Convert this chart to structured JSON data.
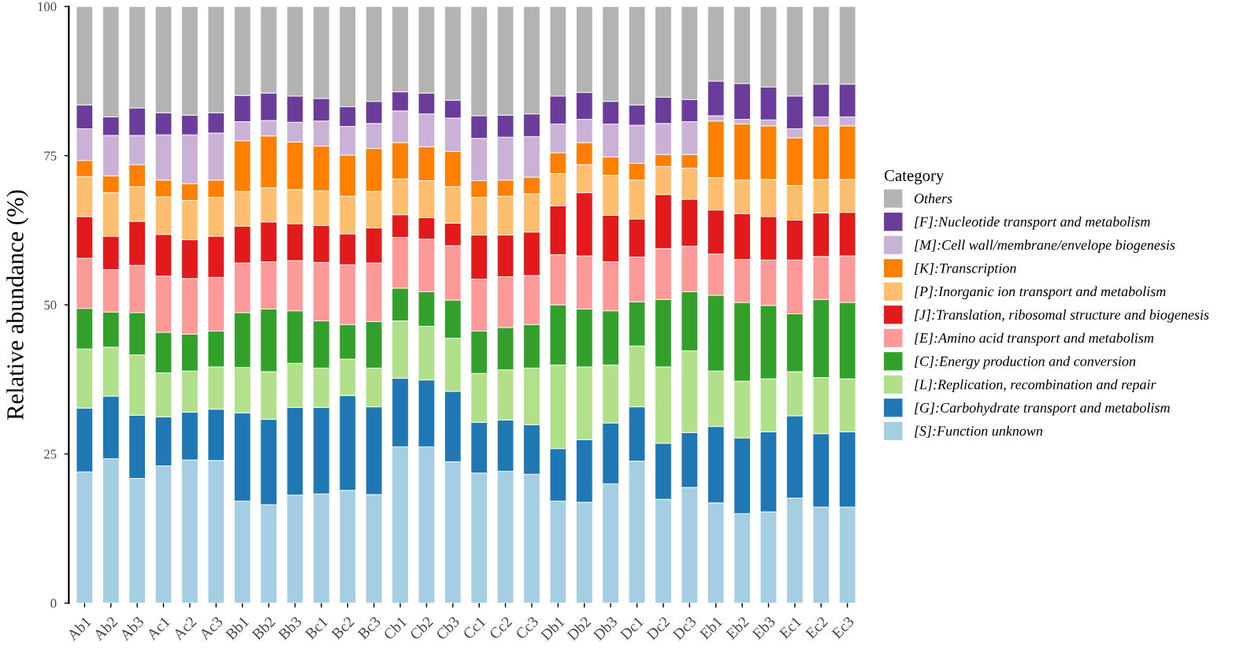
{
  "chart_data": {
    "type": "bar",
    "stacked": true,
    "ylabel": "Relative abundance (%)",
    "legend_title": "Category",
    "legend": "right",
    "grid": false,
    "categories": [
      "Ab1",
      "Ab2",
      "Ab3",
      "Ac1",
      "Ac2",
      "Ac3",
      "Bb1",
      "Bb2",
      "Bb3",
      "Bc1",
      "Bc2",
      "Bc3",
      "Cb1",
      "Cb2",
      "Cb3",
      "Cc1",
      "Cc2",
      "Cc3",
      "Db1",
      "Db2",
      "Db3",
      "Dc1",
      "Dc2",
      "Dc3",
      "Eb1",
      "Eb2",
      "Eb3",
      "Ec1",
      "Ec2",
      "Ec3"
    ],
    "ylim": [
      0,
      100
    ],
    "yticks": [
      0,
      25,
      50,
      75,
      100
    ],
    "series": [
      {
        "name": "[S]:Function unknown",
        "color": "#a6cee3",
        "values": [
          22.0,
          24.2,
          20.9,
          23.0,
          24.0,
          23.9,
          17.1,
          16.5,
          18.1,
          18.3,
          18.9,
          18.2,
          26.2,
          26.2,
          23.7,
          21.8,
          22.1,
          21.6,
          17.1,
          16.9,
          20.0,
          23.8,
          17.4,
          19.4,
          16.8,
          15.0,
          15.3,
          17.6,
          16.1,
          16.1
        ]
      },
      {
        "name": "[G]:Carbohydrate transport and metabolism",
        "color": "#1f78b4",
        "values": [
          10.7,
          10.5,
          10.6,
          8.2,
          8.0,
          8.6,
          14.8,
          14.3,
          14.7,
          14.5,
          15.9,
          14.7,
          11.5,
          11.2,
          11.8,
          8.5,
          8.6,
          8.3,
          8.8,
          10.5,
          10.2,
          9.1,
          9.4,
          9.2,
          12.8,
          12.7,
          13.4,
          13.8,
          12.3,
          12.6
        ]
      },
      {
        "name": "[L]:Replication, recombination and repair",
        "color": "#b2df8a",
        "values": [
          9.9,
          8.2,
          10.1,
          7.4,
          6.9,
          7.1,
          7.6,
          8.0,
          7.4,
          6.6,
          6.1,
          6.5,
          9.6,
          9.0,
          8.9,
          8.2,
          8.4,
          9.5,
          14.0,
          12.2,
          9.7,
          10.2,
          12.8,
          13.7,
          9.3,
          9.5,
          8.9,
          7.4,
          9.4,
          8.9
        ]
      },
      {
        "name": "[C]:Energy production and conversion",
        "color": "#33a02c",
        "values": [
          6.8,
          5.9,
          7.1,
          6.8,
          6.2,
          6.0,
          9.2,
          10.5,
          8.8,
          7.9,
          5.8,
          7.8,
          5.5,
          5.8,
          6.4,
          7.1,
          7.1,
          7.3,
          10.1,
          9.7,
          9.1,
          7.4,
          11.3,
          9.9,
          12.7,
          13.2,
          12.3,
          9.7,
          13.1,
          12.8
        ]
      },
      {
        "name": "[E]:Amino acid transport and metabolism",
        "color": "#fb9a99",
        "values": [
          8.4,
          7.1,
          7.9,
          9.4,
          9.3,
          9.0,
          8.3,
          7.9,
          8.4,
          9.8,
          10.0,
          9.8,
          8.5,
          8.8,
          9.1,
          8.7,
          8.5,
          8.2,
          8.4,
          8.9,
          8.2,
          7.5,
          8.5,
          7.6,
          6.9,
          7.2,
          7.6,
          9.0,
          7.2,
          7.8
        ]
      },
      {
        "name": "[J]:Translation, ribosomal structure and biogenesis",
        "color": "#e31a1c",
        "values": [
          7.0,
          5.6,
          7.4,
          7.0,
          6.5,
          6.9,
          6.2,
          6.7,
          6.2,
          6.2,
          5.2,
          5.9,
          3.8,
          3.6,
          3.8,
          7.4,
          7.0,
          7.3,
          8.2,
          10.6,
          7.8,
          6.4,
          9.1,
          7.9,
          7.4,
          7.7,
          7.3,
          6.7,
          7.3,
          7.3
        ]
      },
      {
        "name": "[P]:Inorganic ion transport and metabolism",
        "color": "#fdbf6f",
        "values": [
          6.7,
          7.3,
          5.8,
          6.3,
          6.6,
          6.5,
          5.8,
          5.7,
          5.7,
          5.8,
          6.3,
          6.1,
          6.0,
          6.2,
          6.1,
          6.3,
          6.5,
          6.4,
          5.4,
          4.7,
          6.7,
          6.5,
          4.7,
          5.2,
          5.4,
          5.6,
          6.2,
          5.8,
          5.6,
          5.5
        ]
      },
      {
        "name": "[K]:Transcription",
        "color": "#ff7f00",
        "values": [
          2.7,
          2.8,
          3.7,
          2.8,
          2.8,
          2.9,
          8.5,
          8.7,
          8.0,
          7.5,
          6.9,
          7.2,
          6.1,
          5.7,
          5.9,
          2.8,
          2.7,
          2.8,
          3.5,
          3.7,
          3.1,
          2.8,
          2.0,
          2.3,
          9.5,
          9.4,
          9.0,
          8.0,
          9.0,
          9.0
        ]
      },
      {
        "name": "[M]:Cell wall/membrane/envelope biogenesis",
        "color": "#cab2d6",
        "values": [
          5.3,
          6.8,
          4.9,
          7.6,
          8.2,
          7.9,
          3.2,
          2.6,
          3.3,
          4.2,
          4.8,
          4.2,
          5.3,
          5.5,
          5.6,
          7.1,
          7.2,
          6.8,
          4.8,
          3.9,
          5.5,
          6.4,
          5.2,
          5.5,
          0.9,
          0.8,
          1.0,
          1.5,
          1.5,
          1.5
        ]
      },
      {
        "name": "[F]:Nucleotide transport and metabolism",
        "color": "#6a3d9a",
        "values": [
          4.0,
          3.1,
          4.6,
          3.7,
          3.3,
          3.4,
          4.4,
          4.6,
          4.4,
          3.8,
          3.3,
          3.7,
          3.2,
          3.5,
          3.0,
          3.8,
          3.7,
          3.8,
          4.7,
          4.5,
          3.8,
          3.4,
          4.4,
          3.7,
          5.8,
          6.0,
          5.5,
          5.5,
          5.5,
          5.5
        ]
      },
      {
        "name": "Others",
        "color": "#b3b3b3",
        "values": [
          16.5,
          18.5,
          17.0,
          17.8,
          18.2,
          17.8,
          14.9,
          14.5,
          15.0,
          15.4,
          16.8,
          15.9,
          14.3,
          14.5,
          15.7,
          18.3,
          18.2,
          18.0,
          15.0,
          14.4,
          15.9,
          16.5,
          15.2,
          15.6,
          12.5,
          12.9,
          13.5,
          15.0,
          13.0,
          13.0
        ]
      }
    ]
  }
}
